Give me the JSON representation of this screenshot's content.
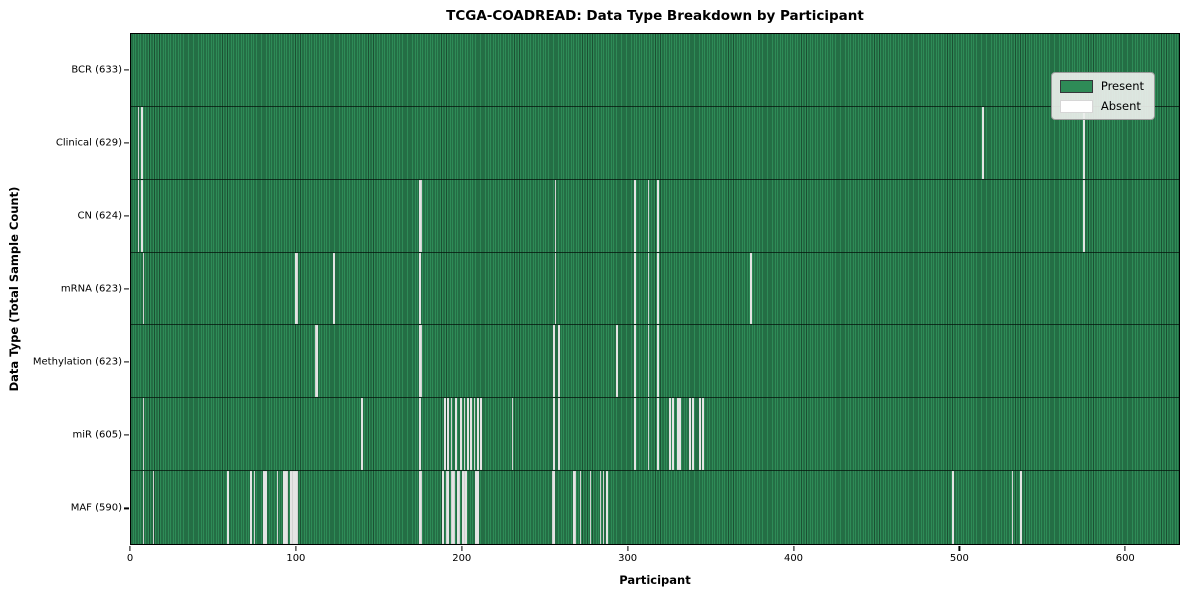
{
  "title": "TCGA-COADREAD: Data Type Breakdown by Participant",
  "colors": {
    "present": "#2e8b57",
    "present_edge": "#1b5133",
    "absent": "#f7f7f7",
    "plot_border": "#000000"
  },
  "legend": {
    "present_label": "Present",
    "absent_label": "Absent"
  },
  "chart_data": {
    "type": "heatmap",
    "title": "TCGA-COADREAD: Data Type Breakdown by Participant",
    "xlabel": "Participant",
    "ylabel": "Data Type (Total Sample Count)",
    "n_participants": 633,
    "x_ticks": [
      0,
      100,
      200,
      300,
      400,
      500,
      600
    ],
    "legend_position": "upper right",
    "grid": false,
    "rows": [
      {
        "label": "BCR (633)",
        "data_type": "BCR",
        "total_present": 633,
        "absent_participants": []
      },
      {
        "label": "Clinical (629)",
        "data_type": "Clinical",
        "total_present": 629,
        "absent_participants": [
          4,
          6,
          514,
          575
        ]
      },
      {
        "label": "CN (624)",
        "data_type": "CN",
        "total_present": 624,
        "absent_participants": [
          4,
          6,
          174,
          175,
          256,
          304,
          312,
          318,
          575
        ]
      },
      {
        "label": "mRNA (623)",
        "data_type": "mRNA",
        "total_present": 623,
        "absent_participants": [
          7,
          99,
          100,
          122,
          174,
          256,
          304,
          312,
          318,
          374
        ]
      },
      {
        "label": "Methylation (623)",
        "data_type": "Methylation",
        "total_present": 623,
        "absent_participants": [
          111,
          112,
          174,
          175,
          255,
          258,
          293,
          304,
          312,
          318
        ]
      },
      {
        "label": "miR (605)",
        "data_type": "miR",
        "total_present": 605,
        "absent_participants": [
          7,
          139,
          174,
          189,
          191,
          193,
          196,
          199,
          201,
          203,
          205,
          207,
          209,
          211,
          230,
          255,
          258,
          304,
          312,
          318,
          325,
          327,
          330,
          331,
          337,
          339,
          343,
          345
        ]
      },
      {
        "label": "MAF (590)",
        "data_type": "MAF",
        "total_present": 590,
        "absent_participants": [
          7,
          13,
          58,
          72,
          74,
          80,
          81,
          88,
          92,
          93,
          94,
          96,
          97,
          98,
          99,
          100,
          174,
          175,
          188,
          190,
          191,
          193,
          194,
          195,
          197,
          198,
          200,
          201,
          202,
          208,
          209,
          254,
          255,
          267,
          268,
          271,
          277,
          283,
          285,
          287,
          496,
          532,
          537
        ]
      }
    ],
    "legend_entries": [
      {
        "label": "Present",
        "color": "#2e8b57"
      },
      {
        "label": "Absent",
        "color": "#ffffff"
      }
    ]
  }
}
